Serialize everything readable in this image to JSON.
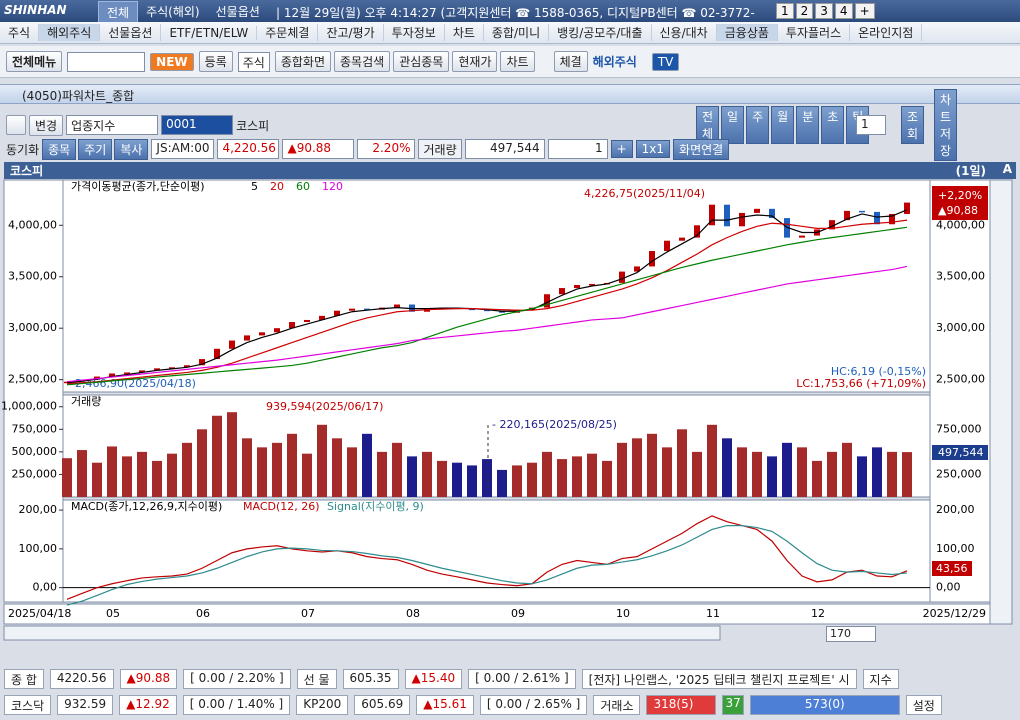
{
  "app": {
    "logo": "SHINHAN",
    "tabs": [
      "전체",
      "주식(해외)",
      "선물옵션"
    ],
    "status": "| 12월 29일(월) 오후 4:14:27 (고객지원센터 ☎ 1588-0365, 디지털PB센터 ☎ 02-3772-",
    "page_buttons": [
      "1",
      "2",
      "3",
      "4",
      "+"
    ],
    "menu": [
      "주식",
      "해외주식",
      "선물옵션",
      "ETF/ETN/ELW",
      "주문체결",
      "잔고/평가",
      "투자정보",
      "차트",
      "종합/미니",
      "뱅킹/공모주/대출",
      "신용/대차",
      "금융상품",
      "투자플러스",
      "온라인지점"
    ],
    "toolbar": {
      "menu_label": "전체메뉴",
      "new": "NEW",
      "register": "등록",
      "market": "주식",
      "buttons": [
        "종합화면",
        "종목검색",
        "관심종목",
        "현재가",
        "차트"
      ],
      "fill": "체결",
      "overseas": "해외주식",
      "tv": "TV"
    },
    "window_title": "(4050)파워차트_종합",
    "controls": {
      "change": "변경",
      "index_type": "업종지수",
      "code": "0001",
      "name": "코스피",
      "periods": [
        "전체",
        "일",
        "주",
        "월",
        "분",
        "초",
        "틱"
      ],
      "count": "1",
      "lookup": "조회",
      "save": "차트저장"
    },
    "row2": {
      "sync": "동기화",
      "buttons": [
        "종목",
        "주기",
        "복사"
      ],
      "code_time": "JS:AM:00",
      "price": "4,220.56",
      "change": "▲90.88",
      "rate": "2.20%",
      "volume_label": "거래량",
      "volume": "497,544",
      "unit": "1",
      "plus": "+",
      "layout": "1x1",
      "link": "화면연결"
    },
    "chart_header": {
      "name": "코스피",
      "period": "(1일)",
      "tool": "A"
    },
    "scroll": {
      "count": "170"
    },
    "bottom": {
      "row1": [
        "종 합",
        "4220.56",
        "▲90.88",
        "[ 0.00 / 2.20% ]",
        "선 물",
        "605.35",
        "▲15.40",
        "[ 0.00 / 2.61% ]",
        "[전자] 나인랩스, '2025 딥테크 챌린지 프로젝트' 시",
        "지수"
      ],
      "row2": [
        "코스닥",
        "932.59",
        "▲12.92",
        "[ 0.00 / 1.40% ]",
        "KP200",
        "605.69",
        "▲15.61",
        "[ 0.00 / 2.65% ]",
        "거래소",
        "318(5)",
        "37",
        "573(0)",
        "설정"
      ]
    }
  },
  "chart_data": [
    {
      "type": "candle",
      "title": "가격이동평균(종가,단순이평)",
      "categories": [
        "2025/04/18",
        null,
        null,
        "05",
        null,
        null,
        null,
        null,
        null,
        "06",
        null,
        null,
        null,
        null,
        null,
        null,
        "07",
        null,
        null,
        null,
        null,
        null,
        null,
        "08",
        null,
        null,
        null,
        null,
        null,
        null,
        "09",
        null,
        null,
        null,
        null,
        null,
        null,
        "10",
        null,
        null,
        null,
        null,
        null,
        "11",
        null,
        null,
        null,
        null,
        null,
        null,
        "12",
        null,
        null,
        null,
        null,
        null,
        "2025/12/29"
      ],
      "values": [
        2480,
        2500,
        2530,
        2560,
        2570,
        2590,
        2610,
        2620,
        2640,
        2700,
        2800,
        2880,
        2930,
        2960,
        3000,
        3060,
        3080,
        3120,
        3170,
        3190,
        3180,
        3200,
        3230,
        3160,
        3190,
        3200,
        3190,
        3180,
        3170,
        3150,
        3180,
        3200,
        3330,
        3390,
        3420,
        3430,
        3440,
        3550,
        3600,
        3750,
        3850,
        3880,
        4000,
        4200,
        3990,
        4120,
        4160,
        4070,
        3880,
        3900,
        3960,
        4050,
        4140,
        4130,
        4010,
        4110,
        4220.56
      ],
      "up_color": "#c00000",
      "down_color": "#1f5fbf",
      "series": [
        {
          "name": "5",
          "color": "#000000",
          "values": [
            2470,
            2485,
            2505,
            2530,
            2550,
            2570,
            2590,
            2605,
            2620,
            2650,
            2710,
            2790,
            2860,
            2910,
            2950,
            3000,
            3040,
            3080,
            3120,
            3160,
            3175,
            3190,
            3200,
            3190,
            3190,
            3195,
            3195,
            3190,
            3180,
            3165,
            3165,
            3180,
            3250,
            3320,
            3380,
            3410,
            3430,
            3480,
            3540,
            3650,
            3740,
            3820,
            3900,
            4050,
            4050,
            4080,
            4100,
            4090,
            3980,
            3930,
            3930,
            3990,
            4060,
            4110,
            4080,
            4090,
            4150
          ]
        },
        {
          "name": "20",
          "color": "#d00000",
          "values": [
            2460,
            2470,
            2480,
            2495,
            2510,
            2525,
            2540,
            2555,
            2570,
            2590,
            2620,
            2660,
            2710,
            2760,
            2810,
            2860,
            2910,
            2960,
            3010,
            3060,
            3100,
            3130,
            3160,
            3170,
            3180,
            3185,
            3190,
            3190,
            3185,
            3180,
            3175,
            3175,
            3190,
            3220,
            3260,
            3300,
            3340,
            3380,
            3430,
            3490,
            3560,
            3640,
            3720,
            3810,
            3880,
            3940,
            3990,
            4020,
            4010,
            3990,
            3970,
            3970,
            3990,
            4010,
            4020,
            4030,
            4050
          ]
        },
        {
          "name": "60",
          "color": "#008000",
          "values": [
            2450,
            2462,
            2475,
            2488,
            2500,
            2512,
            2525,
            2538,
            2550,
            2562,
            2575,
            2588,
            2600,
            2612,
            2625,
            2638,
            2660,
            2690,
            2720,
            2750,
            2780,
            2810,
            2830,
            2860,
            2910,
            2960,
            3010,
            3050,
            3090,
            3130,
            3160,
            3190,
            3230,
            3270,
            3310,
            3350,
            3390,
            3430,
            3470,
            3510,
            3550,
            3590,
            3625,
            3660,
            3690,
            3720,
            3750,
            3780,
            3810,
            3835,
            3860,
            3880,
            3900,
            3920,
            3940,
            3960,
            3980
          ]
        },
        {
          "name": "120",
          "color": "#e000e0",
          "values": [
            2480,
            2495,
            2510,
            2525,
            2540,
            2555,
            2570,
            2585,
            2600,
            2615,
            2630,
            2645,
            2660,
            2675,
            2690,
            2710,
            2730,
            2750,
            2770,
            2790,
            2810,
            2830,
            2850,
            2880,
            2895,
            2910,
            2925,
            2940,
            2955,
            2970,
            2980,
            3000,
            3020,
            3040,
            3060,
            3080,
            3090,
            3100,
            3130,
            3160,
            3190,
            3220,
            3250,
            3280,
            3310,
            3340,
            3370,
            3400,
            3430,
            3450,
            3470,
            3490,
            3510,
            3530,
            3550,
            3570,
            3600
          ]
        }
      ],
      "ylim": [
        2380,
        4440
      ],
      "yticks": [
        {
          "value": 2500,
          "label": "2,500,00"
        },
        {
          "value": 3000,
          "label": "3,000,00"
        },
        {
          "value": 3500,
          "label": "3,500,00"
        },
        {
          "value": 4000,
          "label": "4,000,00"
        }
      ],
      "annotations": {
        "high": "4,226,75(2025/11/04)",
        "low": "2,466,90(2025/04/18)",
        "hc": "HC:6,19 (-0,15%)",
        "lc": "LC:1,753,66 (+71,09%)",
        "last_rate": "+2,20%",
        "last_change": "▲90,88"
      }
    },
    {
      "type": "bar",
      "title": "거래량",
      "values": [
        430000,
        520000,
        380000,
        560000,
        450000,
        500000,
        400000,
        480000,
        600000,
        750000,
        900000,
        939594,
        650000,
        550000,
        600000,
        700000,
        480000,
        800000,
        650000,
        550000,
        700000,
        500000,
        600000,
        450000,
        500000,
        400000,
        380000,
        350000,
        420000,
        300000,
        350000,
        380000,
        500000,
        420000,
        450000,
        480000,
        400000,
        600000,
        650000,
        700000,
        550000,
        750000,
        500000,
        800000,
        650000,
        550000,
        500000,
        450000,
        600000,
        550000,
        400000,
        500000,
        600000,
        450000,
        550000,
        500000,
        497544
      ],
      "ylim": [
        0,
        1130000
      ],
      "yticks": [
        {
          "value": 250000,
          "label": "250,000"
        },
        {
          "value": 500000,
          "label": "500,000"
        },
        {
          "value": 750000,
          "label": "750,000"
        },
        {
          "value": 1000000,
          "label": "1,000,000"
        }
      ],
      "annotations": {
        "peak": "939,594(2025/06/17)",
        "mark": "- 220,165(2025/08/25)",
        "last_label": "497,544"
      }
    },
    {
      "type": "line",
      "title": "MACD(종가,12,26,9,지수이평)",
      "series": [
        {
          "name": "MACD(12, 26)",
          "color": "#c00000",
          "values": [
            -30,
            -15,
            0,
            10,
            18,
            25,
            28,
            30,
            35,
            50,
            70,
            90,
            100,
            105,
            108,
            100,
            95,
            92,
            95,
            90,
            80,
            75,
            72,
            60,
            45,
            35,
            28,
            20,
            12,
            8,
            5,
            10,
            40,
            60,
            70,
            65,
            60,
            75,
            80,
            100,
            120,
            140,
            165,
            185,
            170,
            160,
            150,
            120,
            70,
            30,
            15,
            20,
            40,
            45,
            30,
            28,
            43.56
          ]
        },
        {
          "name": "Signal(지수이평, 9)",
          "color": "#2e8b8b",
          "values": [
            -45,
            -35,
            -20,
            -5,
            8,
            16,
            22,
            26,
            30,
            38,
            50,
            65,
            80,
            92,
            100,
            102,
            100,
            96,
            95,
            93,
            88,
            82,
            78,
            70,
            60,
            50,
            42,
            34,
            26,
            18,
            12,
            10,
            20,
            35,
            50,
            58,
            60,
            66,
            72,
            82,
            95,
            110,
            130,
            150,
            160,
            160,
            155,
            145,
            120,
            90,
            62,
            45,
            40,
            42,
            38,
            34,
            38
          ]
        }
      ],
      "ylim": [
        -37,
        226
      ],
      "yticks": [
        {
          "value": 0,
          "label": "0,00"
        },
        {
          "value": 100,
          "label": "100,00"
        },
        {
          "value": 200,
          "label": "200,00"
        }
      ],
      "annotations": {
        "last_label": "43,56"
      }
    }
  ]
}
